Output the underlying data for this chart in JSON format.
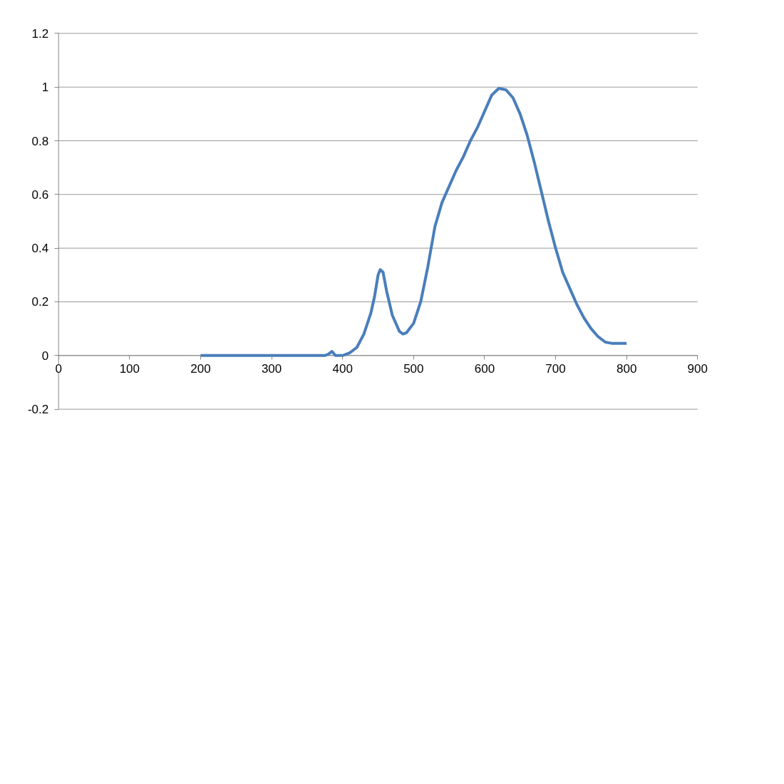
{
  "chart_data": {
    "type": "line",
    "x": [
      200,
      250,
      300,
      350,
      375,
      380,
      385,
      390,
      400,
      410,
      420,
      430,
      440,
      445,
      450,
      453,
      457,
      462,
      470,
      480,
      485,
      490,
      500,
      510,
      520,
      530,
      540,
      550,
      560,
      570,
      580,
      590,
      600,
      610,
      620,
      630,
      640,
      650,
      660,
      670,
      680,
      690,
      700,
      710,
      720,
      730,
      740,
      750,
      760,
      770,
      780,
      790,
      800
    ],
    "series": [
      {
        "color": "#4a7ebb",
        "values": [
          0,
          0,
          0,
          0,
          0,
          0.005,
          0.015,
          0,
          0,
          0.01,
          0.03,
          0.08,
          0.16,
          0.22,
          0.3,
          0.32,
          0.31,
          0.24,
          0.15,
          0.09,
          0.08,
          0.085,
          0.12,
          0.2,
          0.33,
          0.48,
          0.57,
          0.63,
          0.69,
          0.74,
          0.8,
          0.85,
          0.91,
          0.97,
          0.995,
          0.99,
          0.96,
          0.9,
          0.82,
          0.72,
          0.61,
          0.5,
          0.4,
          0.31,
          0.25,
          0.19,
          0.14,
          0.1,
          0.07,
          0.05,
          0.045,
          0.045,
          0.045
        ]
      }
    ],
    "xlim": [
      0,
      900
    ],
    "xticks": [
      0,
      100,
      200,
      300,
      400,
      500,
      600,
      700,
      800,
      900
    ],
    "ylim": [
      -0.2,
      1.2
    ],
    "yticks": [
      -0.2,
      0,
      0.2,
      0.4,
      0.6,
      0.8,
      1,
      1.2
    ],
    "grid": "y",
    "marker": "none",
    "line_style": "solid"
  }
}
